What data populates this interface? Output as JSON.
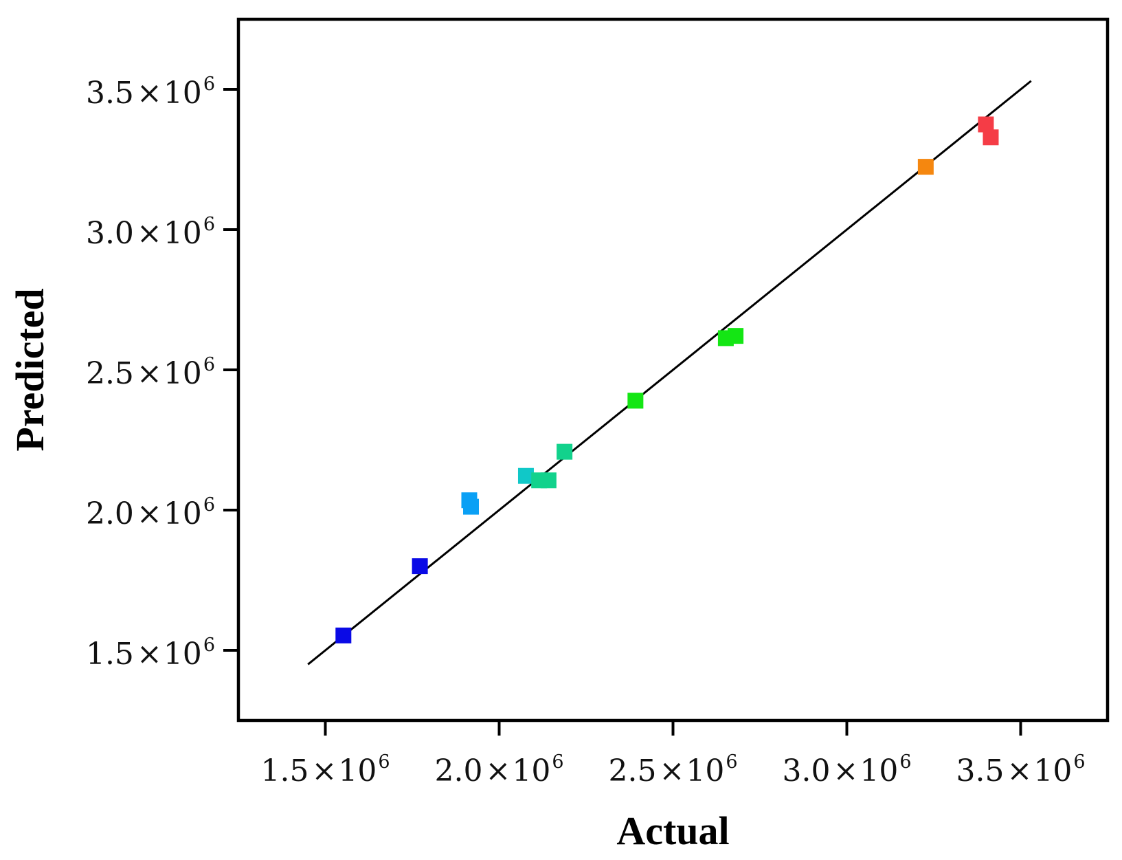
{
  "chart_data": {
    "type": "scatter",
    "title": "",
    "xlabel": "Actual",
    "ylabel": "Predicted",
    "xlim": [
      1250000,
      3750000
    ],
    "ylim": [
      1250000,
      3750000
    ],
    "grid": false,
    "legend": "none",
    "x_ticks": [
      {
        "value": 1500000,
        "mantissa": "1.5",
        "times": "×",
        "base": "10",
        "exp": "6"
      },
      {
        "value": 2000000,
        "mantissa": "2.0",
        "times": "×",
        "base": "10",
        "exp": "6"
      },
      {
        "value": 2500000,
        "mantissa": "2.5",
        "times": "×",
        "base": "10",
        "exp": "6"
      },
      {
        "value": 3000000,
        "mantissa": "3.0",
        "times": "×",
        "base": "10",
        "exp": "6"
      },
      {
        "value": 3500000,
        "mantissa": "3.5",
        "times": "×",
        "base": "10",
        "exp": "6"
      }
    ],
    "y_ticks": [
      {
        "value": 1500000,
        "mantissa": "1.5",
        "times": "×",
        "base": "10",
        "exp": "6"
      },
      {
        "value": 2000000,
        "mantissa": "2.0",
        "times": "×",
        "base": "10",
        "exp": "6"
      },
      {
        "value": 2500000,
        "mantissa": "2.5",
        "times": "×",
        "base": "10",
        "exp": "6"
      },
      {
        "value": 3000000,
        "mantissa": "3.0",
        "times": "×",
        "base": "10",
        "exp": "6"
      },
      {
        "value": 3500000,
        "mantissa": "3.5",
        "times": "×",
        "base": "10",
        "exp": "6"
      }
    ],
    "fit_line": {
      "x": [
        1450000,
        3530000
      ],
      "y": [
        1450000,
        3530000
      ],
      "color": "#000000"
    },
    "points": [
      {
        "x": 1552000,
        "y": 1553000,
        "color": "#0a0ae6"
      },
      {
        "x": 1772000,
        "y": 1800000,
        "color": "#0a0ae6"
      },
      {
        "x": 1914000,
        "y": 2035000,
        "color": "#0aa0f5"
      },
      {
        "x": 1919000,
        "y": 2012000,
        "color": "#0aa0f5"
      },
      {
        "x": 2077000,
        "y": 2122000,
        "color": "#10c8c8"
      },
      {
        "x": 2115000,
        "y": 2106000,
        "color": "#12d28c"
      },
      {
        "x": 2142000,
        "y": 2106000,
        "color": "#12d28c"
      },
      {
        "x": 2188000,
        "y": 2208000,
        "color": "#12d28c"
      },
      {
        "x": 2392000,
        "y": 2390000,
        "color": "#14e614"
      },
      {
        "x": 2652000,
        "y": 2613000,
        "color": "#14e614"
      },
      {
        "x": 2680000,
        "y": 2621000,
        "color": "#14e614"
      },
      {
        "x": 3227000,
        "y": 3224000,
        "color": "#f5870f"
      },
      {
        "x": 3400000,
        "y": 3375000,
        "color": "#f53c46"
      },
      {
        "x": 3414000,
        "y": 3329000,
        "color": "#f53c46"
      }
    ]
  }
}
